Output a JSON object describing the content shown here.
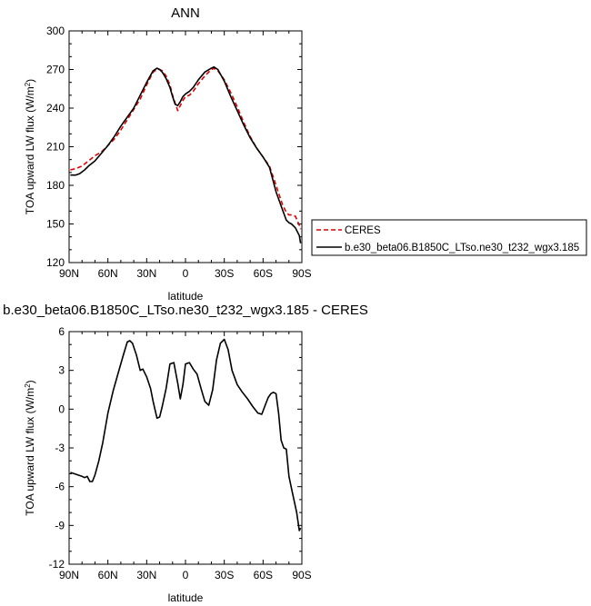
{
  "chart_data": [
    {
      "type": "line",
      "title": "ANN",
      "xlabel": "latitude",
      "ylabel": "TOA upward LW flux (W/m",
      "ylabel_sup": "2",
      "ylabel_end": ")",
      "xlim": [
        90,
        -90
      ],
      "ylim": [
        120,
        300
      ],
      "xticks": [
        90,
        60,
        30,
        0,
        -30,
        -60,
        -90
      ],
      "xtick_labels": [
        "90N",
        "60N",
        "30N",
        "0",
        "30S",
        "60S",
        "90S"
      ],
      "yticks": [
        120,
        150,
        180,
        210,
        240,
        270,
        300
      ],
      "ytick_labels": [
        "120",
        "150",
        "180",
        "210",
        "240",
        "270",
        "300"
      ],
      "grid": false,
      "legend_position": "outside-right",
      "series": [
        {
          "name": "CERES",
          "color": "#e00000",
          "dash": true,
          "x": [
            89,
            85,
            80,
            75,
            70,
            65,
            60,
            55,
            50,
            45,
            40,
            35,
            30,
            25,
            22,
            20,
            18,
            15,
            12,
            10,
            8,
            6,
            4,
            2,
            0,
            -3,
            -6,
            -10,
            -15,
            -20,
            -22,
            -25,
            -30,
            -35,
            -40,
            -45,
            -50,
            -55,
            -60,
            -65,
            -70,
            -75,
            -78,
            -80,
            -82,
            -85,
            -88,
            -89
          ],
          "y": [
            192,
            193,
            195,
            199,
            203,
            206,
            211,
            216,
            223,
            231,
            239,
            247,
            258,
            268,
            270,
            270,
            269,
            265,
            258,
            250,
            244,
            238,
            242,
            246,
            249,
            250,
            253,
            259,
            265,
            270,
            271,
            269,
            262,
            252,
            241,
            229,
            218,
            209,
            202,
            195,
            180,
            165,
            159,
            157,
            157,
            156,
            149,
            146
          ]
        },
        {
          "name": "b.e30_beta06.B1850C_LTso.ne30_t232_wgx3.185",
          "color": "#000000",
          "dash": false,
          "x": [
            89,
            85,
            82,
            78,
            75,
            70,
            65,
            60,
            55,
            50,
            45,
            40,
            35,
            30,
            25,
            22,
            20,
            18,
            15,
            12,
            10,
            8,
            6,
            4,
            2,
            0,
            -3,
            -6,
            -10,
            -15,
            -20,
            -22,
            -25,
            -30,
            -35,
            -40,
            -45,
            -50,
            -55,
            -60,
            -65,
            -70,
            -75,
            -78,
            -80,
            -82,
            -85,
            -88,
            -89
          ],
          "y": [
            188,
            188,
            189,
            192,
            195,
            199,
            205,
            211,
            218,
            226,
            233,
            240,
            250,
            260,
            269,
            271,
            270,
            268,
            263,
            256,
            249,
            243,
            242,
            245,
            249,
            251,
            253,
            256,
            262,
            268,
            271,
            272,
            270,
            261,
            249,
            238,
            227,
            217,
            209,
            202,
            194,
            175,
            161,
            153,
            151,
            150,
            147,
            141,
            135
          ]
        }
      ]
    },
    {
      "type": "line",
      "title": "b.e30_beta06.B1850C_LTso.ne30_t232_wgx3.185 - CERES",
      "xlabel": "latitude",
      "ylabel": "TOA upward LW flux (W/m",
      "ylabel_sup": "2",
      "ylabel_end": ")",
      "xlim": [
        90,
        -90
      ],
      "ylim": [
        -12,
        6
      ],
      "xticks": [
        90,
        60,
        30,
        0,
        -30,
        -60,
        -90
      ],
      "xtick_labels": [
        "90N",
        "60N",
        "30N",
        "0",
        "30S",
        "60S",
        "90S"
      ],
      "yticks": [
        -12,
        -9,
        -6,
        -3,
        0,
        3,
        6
      ],
      "ytick_labels": [
        "-12",
        "-9",
        "-6",
        "-3",
        "0",
        "3",
        "6"
      ],
      "grid": false,
      "series": [
        {
          "color": "#000000",
          "dash": false,
          "x": [
            89,
            86,
            83,
            80,
            78,
            76,
            74,
            72,
            70,
            67,
            64,
            60,
            56,
            52,
            48,
            45,
            43,
            41,
            38,
            35,
            33,
            30,
            27,
            25,
            22,
            20,
            18,
            15,
            12,
            9,
            6,
            4,
            2,
            0,
            -3,
            -6,
            -9,
            -12,
            -15,
            -18,
            -21,
            -24,
            -27,
            -30,
            -33,
            -36,
            -40,
            -44,
            -48,
            -52,
            -56,
            -59,
            -62,
            -64,
            -66,
            -68,
            -70,
            -72,
            -74,
            -76,
            -78,
            -80,
            -83,
            -86,
            -88,
            -89
          ],
          "y": [
            -4.9,
            -5.0,
            -5.1,
            -5.2,
            -5.3,
            -5.2,
            -5.6,
            -5.6,
            -5.1,
            -4.0,
            -2.6,
            -0.3,
            1.4,
            2.8,
            4.2,
            5.2,
            5.3,
            5.1,
            4.2,
            3.0,
            3.1,
            2.5,
            1.6,
            0.6,
            -0.7,
            -0.6,
            0.2,
            1.6,
            3.5,
            3.6,
            2.0,
            0.8,
            1.9,
            3.5,
            3.6,
            3.1,
            2.7,
            1.6,
            0.6,
            0.3,
            1.5,
            3.8,
            5.1,
            5.4,
            4.6,
            3.0,
            1.9,
            1.3,
            0.8,
            0.2,
            -0.3,
            -0.4,
            0.4,
            0.9,
            1.2,
            1.3,
            1.2,
            -0.3,
            -2.4,
            -3.0,
            -3.1,
            -5.2,
            -6.6,
            -8.0,
            -9.4,
            -9.2
          ]
        }
      ]
    }
  ]
}
